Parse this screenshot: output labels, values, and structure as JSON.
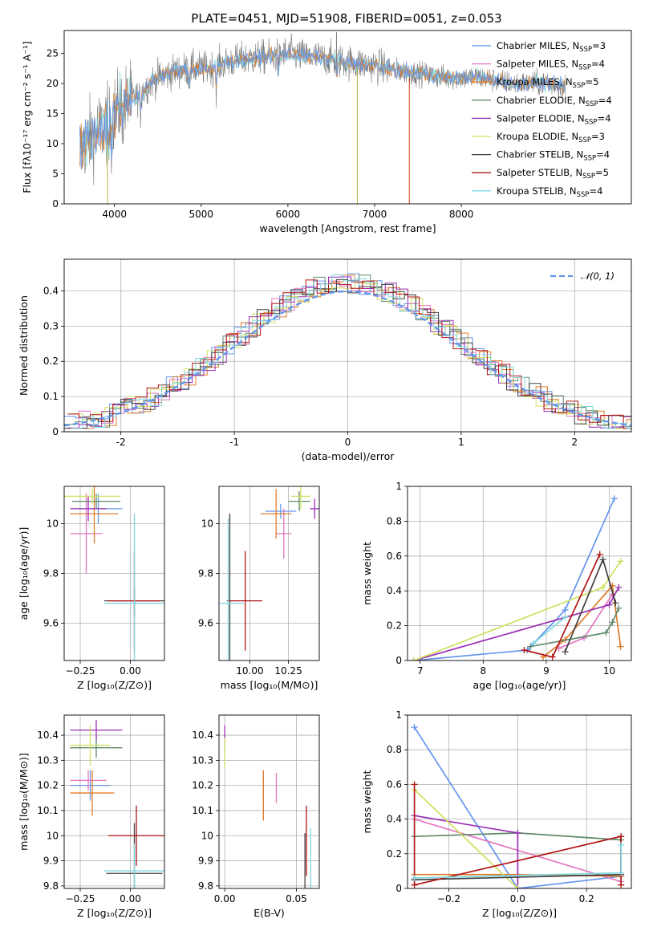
{
  "title": "PLATE=0451, MJD=51908, FIBERID=0051, z=0.053",
  "colors": [
    "#6495ed",
    "#e377c2",
    "#e07b2a",
    "#5f8a6a",
    "#9b30b5",
    "#d0e060",
    "#404040",
    "#b01515",
    "#80d8e0"
  ],
  "models": [
    {
      "label": "Chabrier MILES, N",
      "sub": "SSP",
      "tail": "=3"
    },
    {
      "label": "Salpeter MILES, N",
      "sub": "SSP",
      "tail": "=4"
    },
    {
      "label": "Kroupa MILES, N",
      "sub": "SSP",
      "tail": "=5"
    },
    {
      "label": "Chabrier ELODIE, N",
      "sub": "SSP",
      "tail": "=4"
    },
    {
      "label": "Salpeter ELODIE, N",
      "sub": "SSP",
      "tail": "=4"
    },
    {
      "label": "Kroupa ELODIE, N",
      "sub": "SSP",
      "tail": "=3"
    },
    {
      "label": "Chabrier STELIB, N",
      "sub": "SSP",
      "tail": "=4"
    },
    {
      "label": "Salpeter STELIB, N",
      "sub": "SSP",
      "tail": "=5"
    },
    {
      "label": "Kroupa STELIB, N",
      "sub": "SSP",
      "tail": "=4"
    }
  ],
  "chart_data": [
    {
      "id": "spectrum",
      "type": "line",
      "xlabel": "wavelength [Angstrom, rest frame]",
      "ylabel": "Flux [fλ10⁻¹⁷ erg cm⁻² s⁻¹ A⁻¹]",
      "xlim": [
        3420,
        9960
      ],
      "ylim": [
        0,
        28.8
      ],
      "xticks": [
        4000,
        5000,
        6000,
        7000,
        8000
      ],
      "yticks": [
        0,
        5,
        10,
        15,
        20,
        25
      ],
      "grid": false,
      "legend": "right",
      "continuum": [
        [
          3600,
          9
        ],
        [
          3700,
          11
        ],
        [
          3850,
          12.5
        ],
        [
          3950,
          14
        ],
        [
          4050,
          16
        ],
        [
          4200,
          17.5
        ],
        [
          4300,
          18
        ],
        [
          4400,
          20
        ],
        [
          4500,
          21
        ],
        [
          4700,
          22
        ],
        [
          4900,
          22.5
        ],
        [
          5100,
          22.5
        ],
        [
          5300,
          23.5
        ],
        [
          5500,
          24
        ],
        [
          5800,
          24.5
        ],
        [
          6000,
          25
        ],
        [
          6200,
          24.5
        ],
        [
          6500,
          24
        ],
        [
          6700,
          23.5
        ],
        [
          7000,
          23
        ],
        [
          7300,
          22
        ],
        [
          7600,
          21.5
        ],
        [
          7800,
          21
        ],
        [
          8200,
          21
        ],
        [
          8600,
          20
        ],
        [
          9000,
          20
        ],
        [
          9200,
          19.5
        ]
      ]
    },
    {
      "id": "residuals",
      "type": "step",
      "xlabel": "(data-model)/error",
      "ylabel": "Normed distribution",
      "xlim": [
        -2.5,
        2.5
      ],
      "ylim": [
        0,
        0.49
      ],
      "xticks": [
        -2,
        -1,
        0,
        1,
        2
      ],
      "yticks": [
        0.0,
        0.1,
        0.2,
        0.3,
        0.4
      ],
      "grid": true,
      "legend": "top-right",
      "legend_label": "𝒩(0, 1)"
    },
    {
      "id": "age-vs-Z",
      "type": "errorbar",
      "xlabel": "Z [log₁₀(Z/Z⊙)]",
      "ylabel": "age  [log₁₀(age/yr)]",
      "xlim": [
        -0.33,
        0.17
      ],
      "ylim": [
        9.45,
        10.15
      ],
      "xticks": [
        -0.25,
        0.0
      ],
      "xticklabels": [
        "−0.25",
        "0.00"
      ],
      "yticks": [
        9.6,
        9.8,
        10.0
      ],
      "grid": true,
      "points": [
        {
          "x": -0.16,
          "xerr": 0.12,
          "y": 10.06,
          "yerr": 0.06
        },
        {
          "x": -0.22,
          "xerr": 0.08,
          "y": 9.96,
          "yerr": 0.16
        },
        {
          "x": -0.18,
          "xerr": 0.12,
          "y": 10.04,
          "yerr": 0.12
        },
        {
          "x": -0.17,
          "xerr": 0.12,
          "y": 10.09,
          "yerr": 0.03
        },
        {
          "x": -0.21,
          "xerr": 0.09,
          "y": 10.06,
          "yerr": 0.05
        },
        {
          "x": -0.19,
          "xerr": 0.14,
          "y": 10.11,
          "yerr": 0.03
        },
        {
          "x": 0.02,
          "xerr": 0.15,
          "y": 9.69,
          "yerr": 0.06
        },
        {
          "x": 0.02,
          "xerr": 0.13,
          "y": 9.69,
          "yerr": 0.2
        },
        {
          "x": 0.02,
          "xerr": 0.15,
          "y": 9.68,
          "yerr": 0.36
        }
      ]
    },
    {
      "id": "age-vs-mass",
      "type": "errorbar",
      "xlabel": "mass [log₁₀(M/M⊙)]",
      "ylabel": "",
      "xlim": [
        9.8,
        10.45
      ],
      "ylim": [
        9.45,
        10.15
      ],
      "xticks": [
        10.0,
        10.25
      ],
      "xticklabels": [
        "10.00",
        "10.25"
      ],
      "yticks": [
        9.6,
        9.8,
        10.0
      ],
      "grid": true,
      "points": [
        {
          "x": 10.2,
          "xerr": 0.1,
          "y": 10.05,
          "yerr": 0.03
        },
        {
          "x": 10.22,
          "xerr": 0.05,
          "y": 9.96,
          "yerr": 0.1
        },
        {
          "x": 10.17,
          "xerr": 0.1,
          "y": 10.04,
          "yerr": 0.1
        },
        {
          "x": 10.32,
          "xerr": 0.07,
          "y": 10.09,
          "yerr": 0.04
        },
        {
          "x": 10.42,
          "xerr": 0.03,
          "y": 10.06,
          "yerr": 0.04
        },
        {
          "x": 10.33,
          "xerr": 0.06,
          "y": 10.11,
          "yerr": 0.05
        },
        {
          "x": 9.87,
          "xerr": 0.02,
          "y": 9.69,
          "yerr": 0.35
        },
        {
          "x": 9.97,
          "xerr": 0.11,
          "y": 9.69,
          "yerr": 0.2
        },
        {
          "x": 9.86,
          "xerr": 0.1,
          "y": 9.68,
          "yerr": 0.34
        }
      ]
    },
    {
      "id": "weight-vs-age",
      "type": "line",
      "xlabel": "age  [log₁₀(age/yr)]",
      "ylabel": "mass weight",
      "xlim": [
        6.8,
        10.35
      ],
      "ylim": [
        0,
        1.0
      ],
      "xticks": [
        7,
        8,
        9,
        10
      ],
      "yticks": [
        0.0,
        0.2,
        0.4,
        0.6,
        0.8,
        1.0
      ],
      "grid": true,
      "series": [
        {
          "pts": [
            [
              6.9,
              0.0
            ],
            [
              8.7,
              0.06
            ],
            [
              9.3,
              0.29
            ],
            [
              10.08,
              0.93
            ]
          ]
        },
        {
          "pts": [
            [
              9.2,
              0.07
            ],
            [
              9.6,
              0.13
            ],
            [
              10.05,
              0.38
            ]
          ]
        },
        {
          "pts": [
            [
              8.95,
              0.02
            ],
            [
              9.3,
              0.12
            ],
            [
              10.05,
              0.43
            ],
            [
              10.18,
              0.08
            ]
          ]
        },
        {
          "pts": [
            [
              8.75,
              0.08
            ],
            [
              9.95,
              0.16
            ],
            [
              10.05,
              0.22
            ],
            [
              10.15,
              0.3
            ]
          ]
        },
        {
          "pts": [
            [
              6.9,
              0.0
            ],
            [
              10.0,
              0.32
            ],
            [
              10.15,
              0.42
            ]
          ]
        },
        {
          "pts": [
            [
              6.9,
              0.0
            ],
            [
              9.9,
              0.42
            ],
            [
              10.18,
              0.57
            ]
          ]
        },
        {
          "pts": [
            [
              9.3,
              0.05
            ],
            [
              9.9,
              0.58
            ],
            [
              10.1,
              0.33
            ]
          ]
        },
        {
          "pts": [
            [
              8.65,
              0.06
            ],
            [
              9.1,
              0.02
            ],
            [
              9.85,
              0.61
            ]
          ]
        },
        {
          "pts": [
            [
              8.8,
              0.1
            ],
            [
              9.3,
              0.25
            ]
          ]
        }
      ]
    },
    {
      "id": "mass-vs-Z",
      "type": "errorbar",
      "xlabel": "Z [log₁₀(Z/Z⊙)]",
      "ylabel": "mass [log₁₀(M/M⊙)]",
      "xlim": [
        -0.33,
        0.17
      ],
      "ylim": [
        9.79,
        10.48
      ],
      "xticks": [
        -0.25,
        0.0
      ],
      "xticklabels": [
        "−0.25",
        "0.00"
      ],
      "yticks": [
        9.8,
        9.9,
        10.0,
        10.1,
        10.2,
        10.3,
        10.4
      ],
      "grid": true,
      "points": [
        {
          "x": -0.2,
          "xerr": 0.1,
          "y": 10.2,
          "yerr": 0.06
        },
        {
          "x": -0.21,
          "xerr": 0.09,
          "y": 10.22,
          "yerr": 0.04
        },
        {
          "x": -0.19,
          "xerr": 0.11,
          "y": 10.17,
          "yerr": 0.09
        },
        {
          "x": -0.17,
          "xerr": 0.13,
          "y": 10.35,
          "yerr": 0.04
        },
        {
          "x": -0.17,
          "xerr": 0.13,
          "y": 10.42,
          "yerr": 0.04
        },
        {
          "x": -0.2,
          "xerr": 0.1,
          "y": 10.36,
          "yerr": 0.08
        },
        {
          "x": 0.02,
          "xerr": 0.14,
          "y": 9.85,
          "yerr": 0.2
        },
        {
          "x": 0.03,
          "xerr": 0.14,
          "y": 10.0,
          "yerr": 0.12
        },
        {
          "x": 0.02,
          "xerr": 0.15,
          "y": 9.86,
          "yerr": 0.11
        }
      ]
    },
    {
      "id": "mass-vs-EBV",
      "type": "errorbar",
      "xlabel": "E(B-V)",
      "ylabel": "",
      "xlim": [
        -0.004,
        0.066
      ],
      "ylim": [
        9.79,
        10.48
      ],
      "xticks": [
        0.0,
        0.05
      ],
      "xticklabels": [
        "0.00",
        "0.05"
      ],
      "yticks": [
        9.8,
        9.9,
        10.0,
        10.1,
        10.2,
        10.3,
        10.4
      ],
      "grid": true,
      "points": [
        {
          "x": 0.027,
          "y": 10.2,
          "yerr": 0.06
        },
        {
          "x": 0.036,
          "y": 10.19,
          "yerr": 0.06
        },
        {
          "x": 0.027,
          "y": 10.16,
          "yerr": 0.1
        },
        {
          "x": 0.0,
          "y": 10.37,
          "yerr": 0.04
        },
        {
          "x": 0.0,
          "y": 10.4,
          "yerr": 0.04
        },
        {
          "x": 0.0,
          "y": 10.33,
          "yerr": 0.06
        },
        {
          "x": 0.056,
          "y": 9.85,
          "yerr": 0.16
        },
        {
          "x": 0.057,
          "y": 9.98,
          "yerr": 0.14
        },
        {
          "x": 0.06,
          "y": 9.9,
          "yerr": 0.13
        }
      ]
    },
    {
      "id": "weight-vs-Z",
      "type": "line",
      "xlabel": "Z [log₁₀(Z/Z⊙)]",
      "ylabel": "mass weight",
      "xlim": [
        -0.32,
        0.33
      ],
      "ylim": [
        0,
        1.0
      ],
      "xticks": [
        -0.2,
        0.0,
        0.2
      ],
      "xticklabels": [
        "−0.2",
        "0.0",
        "0.2"
      ],
      "yticks": [
        0.0,
        0.2,
        0.4,
        0.6,
        0.8,
        1.0
      ],
      "grid": true,
      "series": [
        {
          "pts": [
            [
              -0.3,
              0.93
            ],
            [
              0.0,
              0.0
            ],
            [
              0.3,
              0.07
            ]
          ]
        },
        {
          "pts": [
            [
              -0.3,
              0.4
            ],
            [
              0.3,
              0.04
            ]
          ]
        },
        {
          "pts": [
            [
              -0.3,
              0.08
            ],
            [
              0.0,
              0.08
            ],
            [
              0.3,
              0.07
            ]
          ]
        },
        {
          "pts": [
            [
              -0.3,
              0.3
            ],
            [
              0.0,
              0.32
            ],
            [
              0.3,
              0.28
            ]
          ]
        },
        {
          "pts": [
            [
              -0.3,
              0.42
            ],
            [
              0.0,
              0.32
            ],
            [
              0.0,
              0.0
            ]
          ]
        },
        {
          "pts": [
            [
              -0.3,
              0.57
            ],
            [
              0.0,
              0.0
            ]
          ]
        },
        {
          "pts": [
            [
              -0.3,
              0.05
            ],
            [
              0.3,
              0.08
            ],
            [
              0.3,
              0.3
            ]
          ]
        },
        {
          "pts": [
            [
              -0.3,
              0.6
            ],
            [
              -0.3,
              0.02
            ],
            [
              0.3,
              0.3
            ],
            [
              0.3,
              0.02
            ]
          ]
        },
        {
          "pts": [
            [
              -0.3,
              0.06
            ],
            [
              0.3,
              0.09
            ],
            [
              0.3,
              0.25
            ]
          ]
        }
      ]
    }
  ]
}
